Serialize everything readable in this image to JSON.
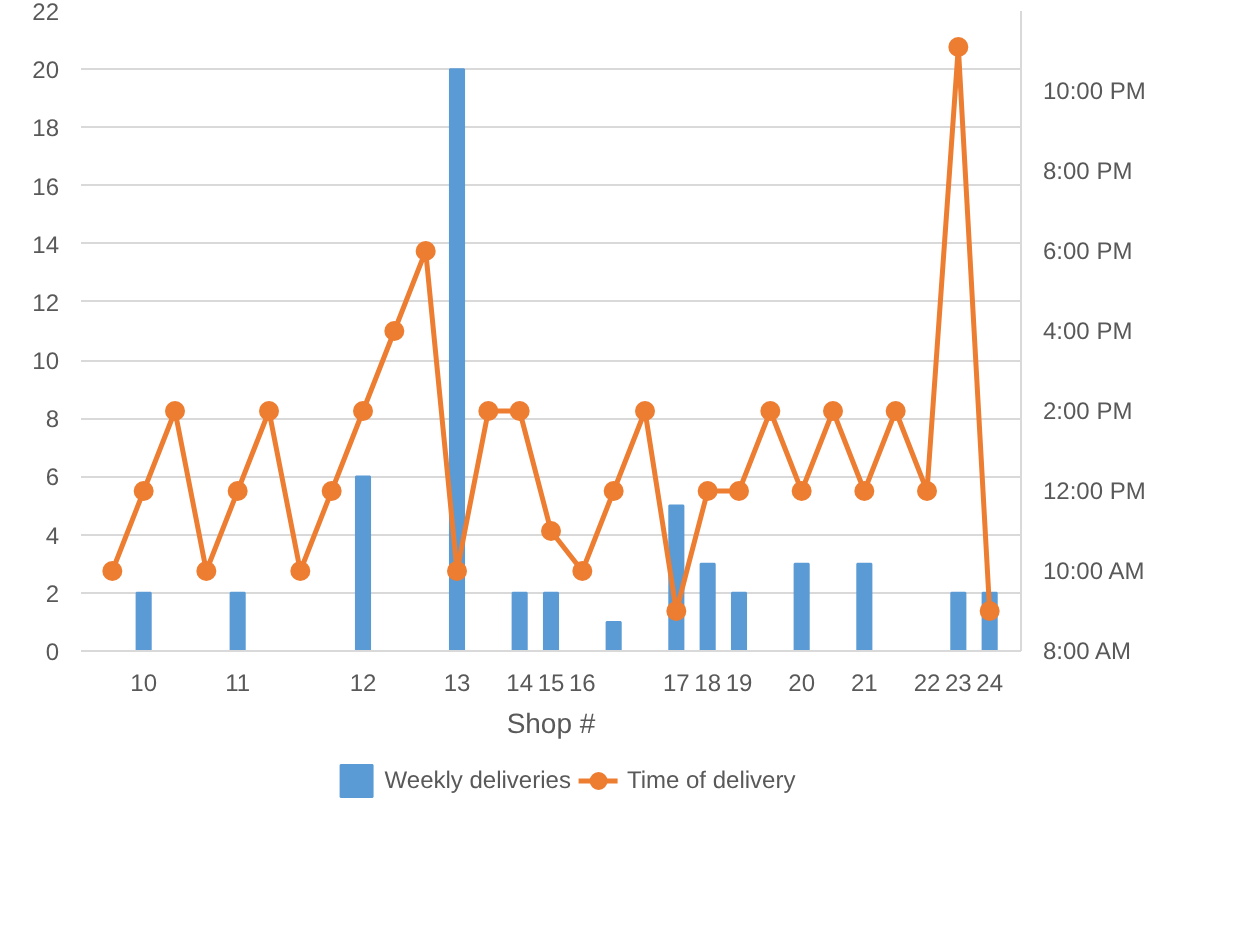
{
  "chart_data": {
    "type": "bar",
    "xlabel": "Shop #",
    "categories": [
      null,
      "10",
      null,
      null,
      "11",
      null,
      null,
      null,
      "12",
      null,
      null,
      "13",
      null,
      "14",
      "15",
      "16",
      null,
      null,
      "17",
      "18",
      "19",
      null,
      "20",
      null,
      "21",
      null,
      "22",
      "23",
      "24"
    ],
    "series": [
      {
        "name": "Weekly deliveries",
        "color": "#5b9bd5",
        "values": [
          null,
          2,
          null,
          null,
          2,
          null,
          null,
          null,
          6,
          null,
          null,
          20,
          null,
          2,
          2,
          null,
          1,
          null,
          5,
          3,
          2,
          null,
          3,
          null,
          3,
          null,
          null,
          2,
          2
        ]
      },
      {
        "name": "Time of delivery",
        "type": "line",
        "axis": "y2",
        "color": "#ed7d31",
        "marker": "circle",
        "values": [
          10,
          12,
          14,
          10,
          12,
          14,
          10,
          12,
          14,
          16,
          18,
          10,
          14,
          14,
          11,
          10,
          12,
          14,
          9,
          12,
          12,
          14,
          12,
          14,
          12,
          14,
          12,
          23.1,
          9
        ]
      }
    ],
    "ylim": [
      0,
      22
    ],
    "yticks": [
      0,
      2,
      4,
      6,
      8,
      10,
      12,
      14,
      16,
      18,
      20,
      22
    ],
    "y2lim": [
      8,
      24
    ],
    "y2ticks": [
      {
        "value": 8,
        "label": "8:00 AM"
      },
      {
        "value": 10,
        "label": "10:00 AM"
      },
      {
        "value": 12,
        "label": "12:00 PM"
      },
      {
        "value": 14,
        "label": "2:00 PM"
      },
      {
        "value": 16,
        "label": "4:00 PM"
      },
      {
        "value": 18,
        "label": "6:00 PM"
      },
      {
        "value": 20,
        "label": "8:00 PM"
      },
      {
        "value": 22,
        "label": "10:00 PM"
      }
    ],
    "grid": "y",
    "legend": "bottom"
  }
}
